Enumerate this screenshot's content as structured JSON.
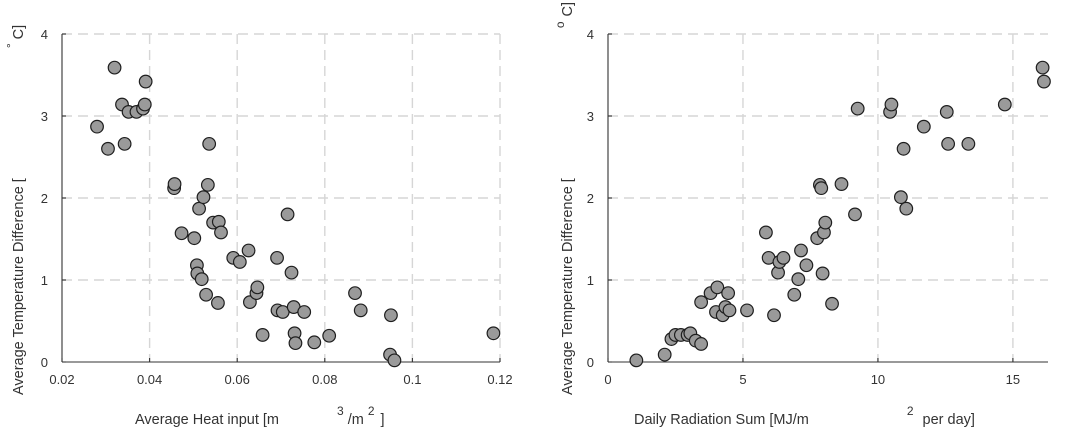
{
  "chart_data": [
    {
      "type": "scatter",
      "xlabel_main": "Average Heat input [m",
      "xlabel_sup1": "3",
      "xlabel_mid": "/m",
      "xlabel_sup2": "2",
      "xlabel_end": "]",
      "ylabel_main": "Average Temperature Difference [",
      "ylabel_sup": "°",
      "ylabel_end": "C]",
      "xlim": [
        0.02,
        0.12
      ],
      "ylim": [
        0,
        4
      ],
      "xticks": [
        "0.02",
        "0.04",
        "0.06",
        "0.08",
        "0.1",
        "0.12"
      ],
      "xtick_values": [
        0.02,
        0.04,
        0.06,
        0.08,
        0.1,
        0.12
      ],
      "yticks": [
        "0",
        "1",
        "2",
        "3",
        "4"
      ],
      "ytick_values": [
        0,
        1,
        2,
        3,
        4
      ],
      "grid": true,
      "marker_color": "#9a9a9a",
      "points": [
        [
          0.028,
          2.87
        ],
        [
          0.0305,
          2.6
        ],
        [
          0.032,
          3.59
        ],
        [
          0.0337,
          3.14
        ],
        [
          0.0343,
          2.66
        ],
        [
          0.0352,
          3.05
        ],
        [
          0.037,
          3.05
        ],
        [
          0.0385,
          3.09
        ],
        [
          0.0389,
          3.14
        ],
        [
          0.0391,
          3.42
        ],
        [
          0.0456,
          2.12
        ],
        [
          0.0457,
          2.17
        ],
        [
          0.0473,
          1.57
        ],
        [
          0.0502,
          1.51
        ],
        [
          0.0508,
          1.18
        ],
        [
          0.0509,
          1.08
        ],
        [
          0.0513,
          1.87
        ],
        [
          0.0519,
          1.01
        ],
        [
          0.0523,
          2.01
        ],
        [
          0.0529,
          0.82
        ],
        [
          0.0533,
          2.16
        ],
        [
          0.0536,
          2.66
        ],
        [
          0.0545,
          1.7
        ],
        [
          0.0556,
          0.72
        ],
        [
          0.0558,
          1.71
        ],
        [
          0.0563,
          1.58
        ],
        [
          0.0591,
          1.27
        ],
        [
          0.0606,
          1.22
        ],
        [
          0.0626,
          1.36
        ],
        [
          0.0629,
          0.73
        ],
        [
          0.0644,
          0.84
        ],
        [
          0.0646,
          0.91
        ],
        [
          0.0658,
          0.33
        ],
        [
          0.0691,
          1.27
        ],
        [
          0.0692,
          0.63
        ],
        [
          0.0704,
          0.61
        ],
        [
          0.0715,
          1.8
        ],
        [
          0.0724,
          1.09
        ],
        [
          0.0729,
          0.67
        ],
        [
          0.0731,
          0.35
        ],
        [
          0.0733,
          0.23
        ],
        [
          0.0753,
          0.61
        ],
        [
          0.0776,
          0.24
        ],
        [
          0.081,
          0.32
        ],
        [
          0.0869,
          0.84
        ],
        [
          0.0882,
          0.63
        ],
        [
          0.0949,
          0.09
        ],
        [
          0.0951,
          0.57
        ],
        [
          0.0959,
          0.02
        ],
        [
          0.1185,
          0.35
        ]
      ]
    },
    {
      "type": "scatter",
      "xlabel_main": "Daily Radiation Sum [MJ/m",
      "xlabel_sup1": "2",
      "xlabel_end": "per day]",
      "ylabel_main": "Average Temperature Difference [",
      "ylabel_sup": "o",
      "ylabel_end": "C]",
      "xlim": [
        0,
        16.3
      ],
      "ylim": [
        0,
        4
      ],
      "xticks": [
        "0",
        "5",
        "10",
        "15"
      ],
      "xtick_values": [
        0,
        5,
        10,
        15
      ],
      "yticks": [
        "0",
        "1",
        "2",
        "3",
        "4"
      ],
      "ytick_values": [
        0,
        1,
        2,
        3,
        4
      ],
      "grid": true,
      "marker_color": "#9a9a9a",
      "points": [
        [
          1.05,
          0.02
        ],
        [
          2.1,
          0.09
        ],
        [
          2.35,
          0.28
        ],
        [
          2.5,
          0.33
        ],
        [
          2.7,
          0.33
        ],
        [
          2.95,
          0.33
        ],
        [
          3.05,
          0.35
        ],
        [
          3.25,
          0.26
        ],
        [
          3.45,
          0.22
        ],
        [
          3.45,
          0.73
        ],
        [
          3.8,
          0.84
        ],
        [
          4.0,
          0.61
        ],
        [
          4.05,
          0.91
        ],
        [
          4.25,
          0.57
        ],
        [
          4.35,
          0.67
        ],
        [
          4.45,
          0.84
        ],
        [
          4.5,
          0.63
        ],
        [
          5.15,
          0.63
        ],
        [
          5.85,
          1.58
        ],
        [
          5.95,
          1.27
        ],
        [
          6.15,
          0.57
        ],
        [
          6.3,
          1.09
        ],
        [
          6.35,
          1.22
        ],
        [
          6.5,
          1.27
        ],
        [
          6.9,
          0.82
        ],
        [
          7.05,
          1.01
        ],
        [
          7.15,
          1.36
        ],
        [
          7.35,
          1.18
        ],
        [
          7.75,
          1.51
        ],
        [
          7.85,
          2.16
        ],
        [
          7.9,
          2.12
        ],
        [
          7.95,
          1.08
        ],
        [
          8.0,
          1.58
        ],
        [
          8.05,
          1.7
        ],
        [
          8.3,
          0.71
        ],
        [
          8.65,
          2.17
        ],
        [
          9.15,
          1.8
        ],
        [
          9.25,
          3.09
        ],
        [
          10.45,
          3.05
        ],
        [
          10.5,
          3.14
        ],
        [
          10.85,
          2.01
        ],
        [
          10.95,
          2.6
        ],
        [
          11.05,
          1.87
        ],
        [
          11.7,
          2.87
        ],
        [
          12.55,
          3.05
        ],
        [
          12.6,
          2.66
        ],
        [
          13.35,
          2.66
        ],
        [
          14.7,
          3.14
        ],
        [
          16.1,
          3.59
        ],
        [
          16.15,
          3.42
        ]
      ]
    }
  ]
}
